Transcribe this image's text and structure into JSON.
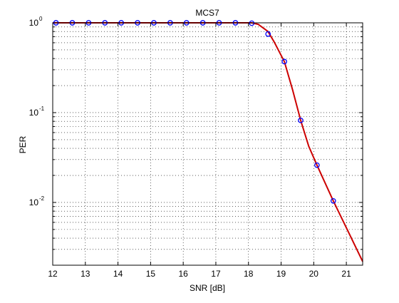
{
  "chart_data": {
    "type": "line",
    "title": "MCS7",
    "xlabel": "SNR [dB]",
    "ylabel": "PER",
    "xlim": [
      12,
      21.5
    ],
    "ylim": [
      0.002,
      1
    ],
    "yscale": "log",
    "grid": "on (major and minor)",
    "x_ticks": [
      "12",
      "13",
      "14",
      "15",
      "16",
      "17",
      "18",
      "19",
      "20",
      "21"
    ],
    "y_ticks": [
      {
        "base": "10",
        "exp": "0",
        "value": 1
      },
      {
        "base": "10",
        "exp": "-1",
        "value": 0.1
      },
      {
        "base": "10",
        "exp": "-2",
        "value": 0.01
      }
    ],
    "series": [
      {
        "style": "markers",
        "marker": "circle",
        "color": "#0000ff",
        "x": [
          12.1,
          12.6,
          13.1,
          13.6,
          14.1,
          14.6,
          15.1,
          15.6,
          16.1,
          16.6,
          17.1,
          17.6,
          18.1,
          18.6,
          19.1,
          19.6,
          20.1,
          20.6
        ],
        "y": [
          1,
          1,
          1,
          1,
          1,
          1,
          1,
          1,
          1,
          1,
          1,
          1,
          0.99,
          0.75,
          0.37,
          0.082,
          0.026,
          0.0104
        ]
      },
      {
        "style": "line",
        "color": "#cc0000",
        "x": [
          12.0,
          18.1,
          18.3,
          18.6,
          18.8,
          19.1,
          19.35,
          19.6,
          19.85,
          20.1,
          20.6,
          21.1,
          21.5
        ],
        "y": [
          1,
          1,
          0.96,
          0.8,
          0.6,
          0.37,
          0.18,
          0.082,
          0.042,
          0.026,
          0.0104,
          0.0044,
          0.0022
        ]
      }
    ]
  }
}
